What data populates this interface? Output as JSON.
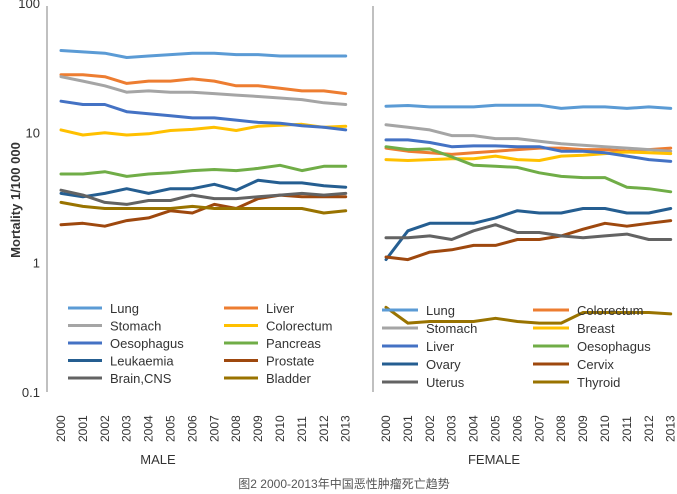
{
  "caption": "图2 2000-2013年中国恶性肿瘤死亡趋势",
  "chart_data": [
    {
      "type": "line",
      "panel": "MALE",
      "xlabel": "MALE",
      "ylabel": "Mortality  1/100 000",
      "yscale": "log",
      "ylim": [
        0.1,
        100
      ],
      "yticks": [
        "0.1",
        "1",
        "10",
        "100"
      ],
      "x": [
        "2000",
        "2001",
        "2002",
        "2003",
        "2004",
        "2005",
        "2006",
        "2007",
        "2008",
        "2009",
        "2010",
        "2011",
        "2012",
        "2013"
      ],
      "series": [
        {
          "name": "Lung",
          "color": "#5b9bd5",
          "values": [
            43,
            42,
            41,
            38,
            39,
            40,
            41,
            41,
            40,
            40,
            39,
            39,
            39,
            39
          ]
        },
        {
          "name": "Liver",
          "color": "#ed7d31",
          "values": [
            28,
            28,
            27,
            24,
            25,
            25,
            26,
            25,
            23,
            23,
            22,
            21,
            21,
            20
          ]
        },
        {
          "name": "Stomach",
          "color": "#a5a5a5",
          "values": [
            27,
            25,
            23,
            20.5,
            21,
            20.5,
            20.5,
            20,
            19.5,
            19,
            18.5,
            18,
            17,
            16.5
          ]
        },
        {
          "name": "Colorectum",
          "color": "#ffc000",
          "values": [
            10.5,
            9.6,
            10,
            9.6,
            9.8,
            10.4,
            10.6,
            11,
            10.4,
            11.2,
            11.4,
            11.6,
            11,
            11.2
          ]
        },
        {
          "name": "Oesophagus",
          "color": "#4472c4",
          "values": [
            17.5,
            16.5,
            16.5,
            14.5,
            14,
            13.5,
            13,
            13,
            12.5,
            12,
            11.8,
            11.3,
            11,
            10.5
          ]
        },
        {
          "name": "Pancreas",
          "color": "#70ad47",
          "values": [
            4.8,
            4.8,
            5,
            4.6,
            4.8,
            4.9,
            5.1,
            5.2,
            5.1,
            5.3,
            5.6,
            5.1,
            5.5,
            5.5
          ]
        },
        {
          "name": "Leukaemia",
          "color": "#255e91",
          "values": [
            3.4,
            3.2,
            3.4,
            3.7,
            3.4,
            3.7,
            3.7,
            4,
            3.6,
            4.3,
            4.1,
            4.1,
            3.9,
            3.8
          ]
        },
        {
          "name": "Prostate",
          "color": "#9e480e",
          "values": [
            1.95,
            2,
            1.9,
            2.1,
            2.2,
            2.5,
            2.4,
            2.8,
            2.6,
            3.1,
            3.3,
            3.2,
            3.2,
            3.2
          ]
        },
        {
          "name": "Brain,CNS",
          "color": "#636363",
          "values": [
            3.6,
            3.3,
            2.9,
            2.8,
            3,
            3,
            3.3,
            3.1,
            3.1,
            3.2,
            3.3,
            3.4,
            3.3,
            3.4
          ]
        },
        {
          "name": "Bladder",
          "color": "#997300",
          "values": [
            2.9,
            2.7,
            2.6,
            2.6,
            2.6,
            2.6,
            2.7,
            2.6,
            2.6,
            2.6,
            2.6,
            2.6,
            2.4,
            2.5
          ]
        }
      ]
    },
    {
      "type": "line",
      "panel": "FEMALE",
      "xlabel": "FEMALE",
      "yscale": "log",
      "ylim": [
        0.1,
        100
      ],
      "x": [
        "2000",
        "2001",
        "2002",
        "2003",
        "2004",
        "2005",
        "2006",
        "2007",
        "2008",
        "2009",
        "2010",
        "2011",
        "2012",
        "2013"
      ],
      "series": [
        {
          "name": "Lung",
          "color": "#5b9bd5",
          "values": [
            16,
            16.2,
            15.8,
            15.8,
            15.8,
            16.3,
            16.3,
            16.3,
            15.4,
            15.8,
            15.8,
            15.4,
            15.8,
            15.4
          ]
        },
        {
          "name": "Colorectum",
          "color": "#ed7d31",
          "values": [
            7.6,
            7.2,
            7,
            6.8,
            7,
            7.2,
            7.4,
            7.6,
            7.6,
            7.4,
            7.4,
            7.2,
            7.4,
            7.6
          ]
        },
        {
          "name": "Stomach",
          "color": "#a5a5a5",
          "values": [
            11.5,
            11,
            10.5,
            9.5,
            9.5,
            9,
            9,
            8.6,
            8.2,
            8,
            7.8,
            7.6,
            7.4,
            7.2
          ]
        },
        {
          "name": "Breast",
          "color": "#ffc000",
          "values": [
            6.2,
            6.1,
            6.2,
            6.3,
            6.3,
            6.6,
            6.2,
            6.1,
            6.6,
            6.7,
            6.9,
            7.1,
            7,
            6.9
          ]
        },
        {
          "name": "Liver",
          "color": "#4472c4",
          "values": [
            8.8,
            8.8,
            8.4,
            7.8,
            7.9,
            7.9,
            7.8,
            7.8,
            7.2,
            7.2,
            7,
            6.6,
            6.2,
            6
          ]
        },
        {
          "name": "Oesophagus",
          "color": "#70ad47",
          "values": [
            7.8,
            7.4,
            7.5,
            6.5,
            5.6,
            5.5,
            5.4,
            4.9,
            4.6,
            4.5,
            4.5,
            3.8,
            3.7,
            3.5
          ]
        },
        {
          "name": "Ovary",
          "color": "#255e91",
          "values": [
            1.05,
            1.75,
            2,
            2,
            2,
            2.2,
            2.5,
            2.4,
            2.4,
            2.6,
            2.6,
            2.4,
            2.4,
            2.6
          ]
        },
        {
          "name": "Cervix",
          "color": "#9e480e",
          "values": [
            1.1,
            1.05,
            1.2,
            1.25,
            1.35,
            1.35,
            1.5,
            1.5,
            1.6,
            1.8,
            2,
            1.9,
            2,
            2.1
          ]
        },
        {
          "name": "Uterus",
          "color": "#636363",
          "values": [
            1.55,
            1.55,
            1.6,
            1.5,
            1.75,
            1.95,
            1.7,
            1.7,
            1.6,
            1.55,
            1.6,
            1.65,
            1.5,
            1.5
          ]
        },
        {
          "name": "Thyroid",
          "color": "#997300",
          "values": [
            0.45,
            0.34,
            0.35,
            0.35,
            0.35,
            0.37,
            0.35,
            0.34,
            0.34,
            0.41,
            0.41,
            0.41,
            0.41,
            0.4
          ]
        }
      ]
    }
  ]
}
